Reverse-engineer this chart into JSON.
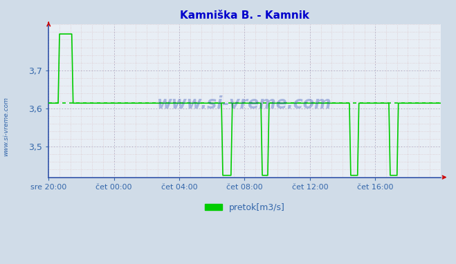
{
  "title": "Kamniška B. - Kamnik",
  "title_color": "#0000cc",
  "bg_color": "#d0dce8",
  "plot_bg_color": "#e8eef5",
  "line_color": "#00cc00",
  "line_width": 1.2,
  "avg_value": 3.614,
  "avg_line_color": "#00cc00",
  "tick_color": "#3366aa",
  "spine_color": "#3355aa",
  "arrow_color": "#cc0000",
  "legend_label": "pretok[m3/s]",
  "legend_color": "#00cc00",
  "watermark": "www.si-vreme.com",
  "watermark_color": "#1133aa",
  "watermark_alpha": 0.3,
  "side_label": "www.si-vreme.com",
  "side_label_color": "#3366aa",
  "xticklabels": [
    "sre 20:00",
    "čet 00:00",
    "čet 04:00",
    "čet 08:00",
    "čet 12:00",
    "čet 16:00"
  ],
  "yticklabels": [
    "3,5",
    "3,6",
    "3,7"
  ],
  "ylim": [
    3.42,
    3.82
  ],
  "xlim": [
    0,
    288
  ],
  "xtick_positions": [
    0,
    48,
    96,
    144,
    192,
    240
  ],
  "ytick_positions": [
    3.5,
    3.6,
    3.7
  ],
  "high_start": 8,
  "high_end": 18,
  "high_val": 3.795,
  "base_val": 3.614,
  "min_val": 3.425,
  "dip1_start": 128,
  "dip1_end": 135,
  "dip2_start": 157,
  "dip2_end": 162,
  "dip3_start": 222,
  "dip3_end": 228,
  "dip4_start": 251,
  "dip4_end": 257
}
